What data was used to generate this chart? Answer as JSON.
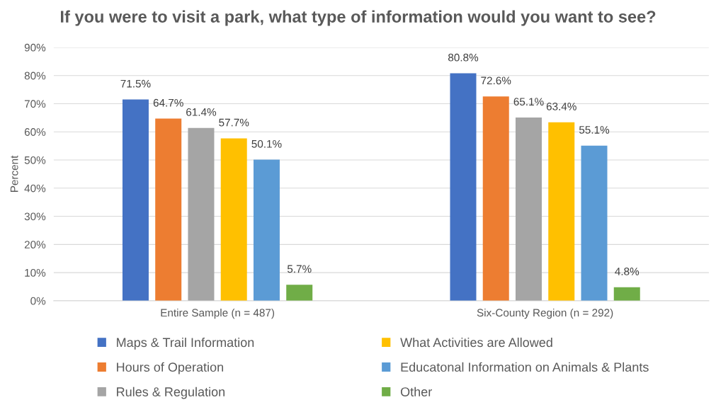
{
  "chart_data": {
    "type": "bar",
    "title": "If you were to visit a park, what type of information would you want to see?",
    "ylabel": "Percent",
    "categories": [
      "Entire Sample (n = 487)",
      "Six-County Region (n = 292)"
    ],
    "series": [
      {
        "name": "Maps & Trail Information",
        "color": "#4472c4",
        "values": [
          71.5,
          80.8
        ],
        "value_labels": [
          "71.5%",
          "80.8%"
        ]
      },
      {
        "name": "Hours of Operation",
        "color": "#ed7d31",
        "values": [
          64.7,
          72.6
        ],
        "value_labels": [
          "64.7%",
          "72.6%"
        ]
      },
      {
        "name": "Rules & Regulation",
        "color": "#a5a5a5",
        "values": [
          61.4,
          65.1
        ],
        "value_labels": [
          "61.4%",
          "65.1%"
        ]
      },
      {
        "name": "What Activities are Allowed",
        "color": "#ffc000",
        "values": [
          57.7,
          63.4
        ],
        "value_labels": [
          "57.7%",
          "63.4%"
        ]
      },
      {
        "name": "Educatonal Information on Animals & Plants",
        "color": "#5b9bd5",
        "values": [
          50.1,
          55.1
        ],
        "value_labels": [
          "50.1%",
          "55.1%"
        ]
      },
      {
        "name": "Other",
        "color": "#70ad47",
        "values": [
          5.7,
          4.8
        ],
        "value_labels": [
          "5.7%",
          "4.8%"
        ]
      }
    ],
    "ylim": [
      0,
      90
    ],
    "yticks": [
      {
        "value": 0,
        "label": "0%"
      },
      {
        "value": 10,
        "label": "10%"
      },
      {
        "value": 20,
        "label": "20%"
      },
      {
        "value": 30,
        "label": "30%"
      },
      {
        "value": 40,
        "label": "40%"
      },
      {
        "value": 50,
        "label": "50%"
      },
      {
        "value": 60,
        "label": "60%"
      },
      {
        "value": 70,
        "label": "70%"
      },
      {
        "value": 80,
        "label": "80%"
      },
      {
        "value": 90,
        "label": "90%"
      }
    ],
    "grid": "y",
    "legend": "bottom"
  }
}
